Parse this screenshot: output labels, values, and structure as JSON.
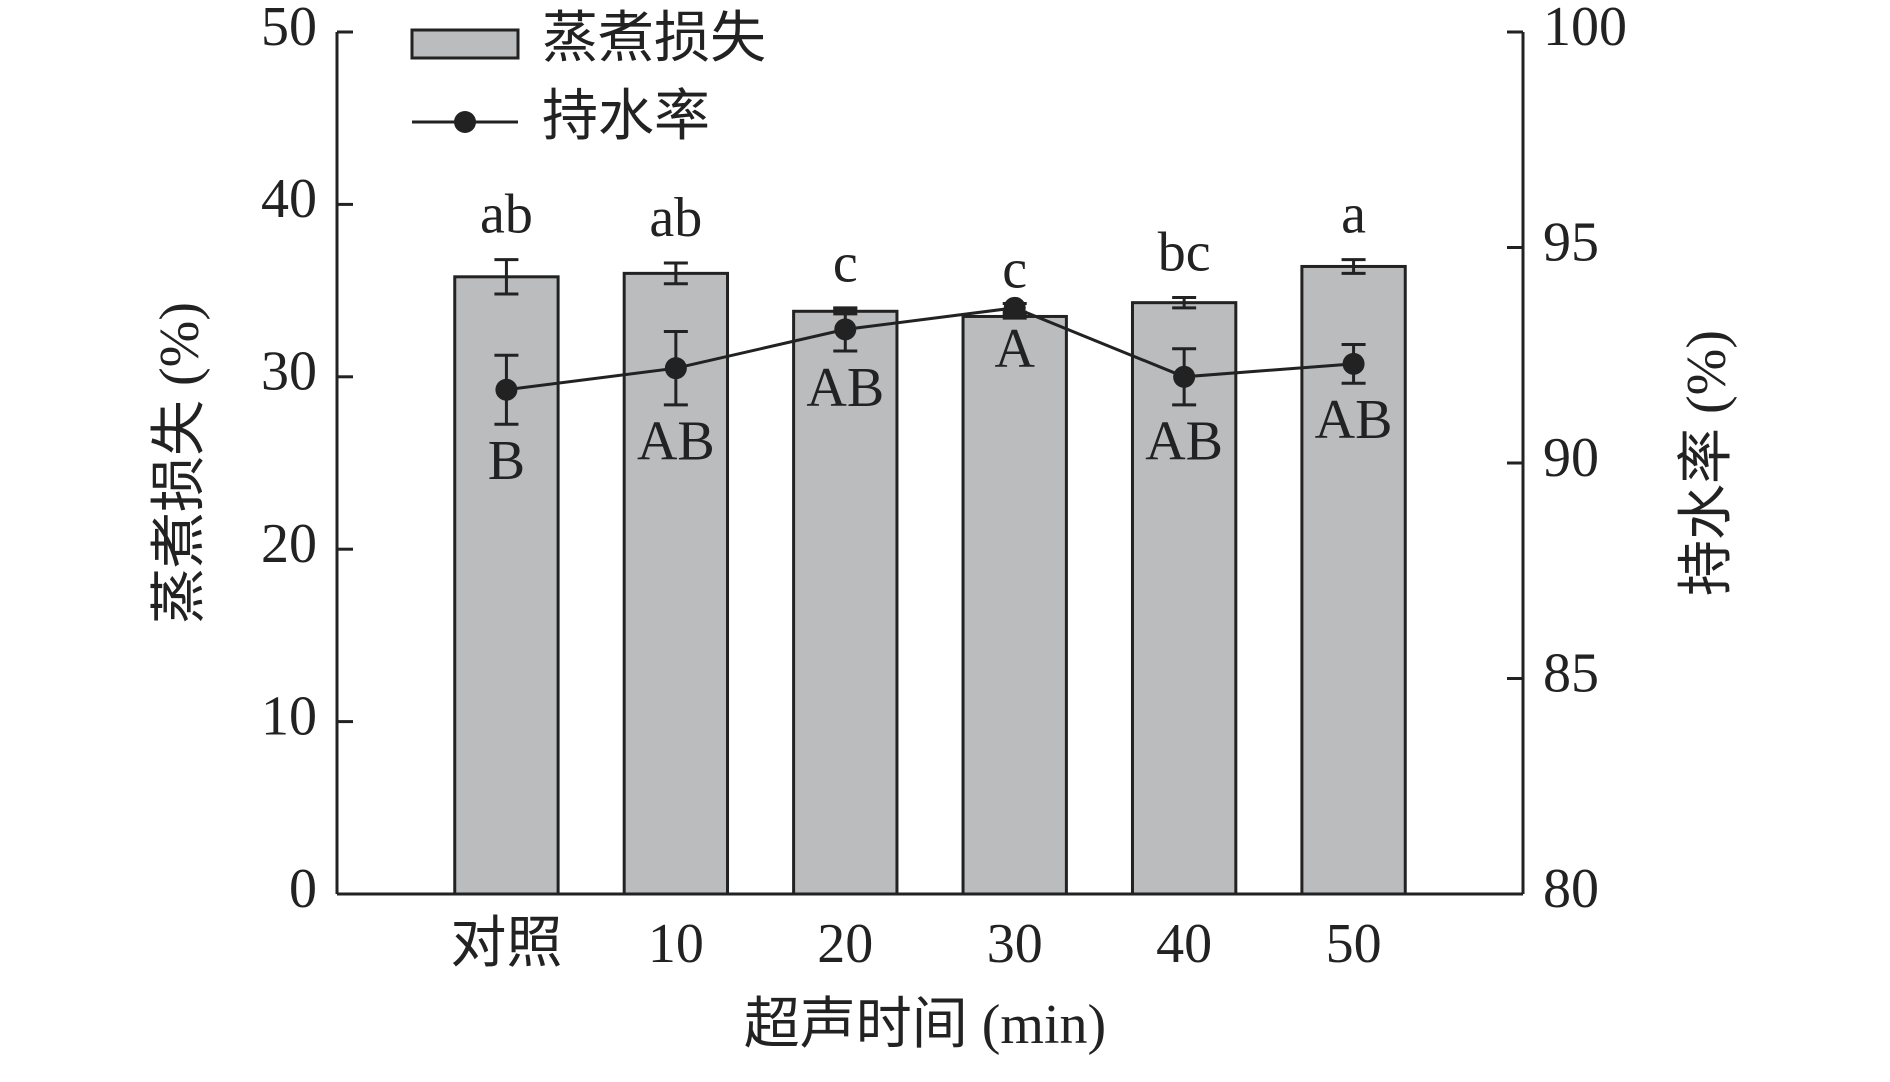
{
  "chart_data": {
    "type": "bar",
    "categories": [
      "对照",
      "10",
      "20",
      "30",
      "40",
      "50"
    ],
    "xlabel": "超声时间 (min)",
    "ylabel": "蒸煮损失 (%)",
    "y2label": "持水率 (%)",
    "ylim": [
      0,
      50
    ],
    "yticks": [
      0,
      10,
      20,
      30,
      40,
      50
    ],
    "y2lim": [
      80,
      100
    ],
    "y2ticks": [
      80,
      85,
      90,
      95,
      100
    ],
    "series": [
      {
        "name": "蒸煮损失",
        "type": "bar",
        "color": "#bbbcbe",
        "values": [
          35.8,
          36.0,
          33.8,
          33.5,
          34.3,
          36.4
        ],
        "errors": [
          1.0,
          0.6,
          0.15,
          0.1,
          0.3,
          0.4
        ],
        "labels": [
          "ab",
          "ab",
          "c",
          "c",
          "bc",
          "a"
        ]
      },
      {
        "name": "持水率",
        "type": "line",
        "axis": "y2",
        "color": "#222222",
        "values": [
          91.7,
          92.2,
          93.1,
          93.6,
          92.0,
          92.3
        ],
        "errors": [
          0.8,
          0.85,
          0.5,
          0.1,
          0.65,
          0.45
        ],
        "labels": [
          "B",
          "AB",
          "AB",
          "A",
          "AB",
          "AB"
        ]
      }
    ]
  }
}
